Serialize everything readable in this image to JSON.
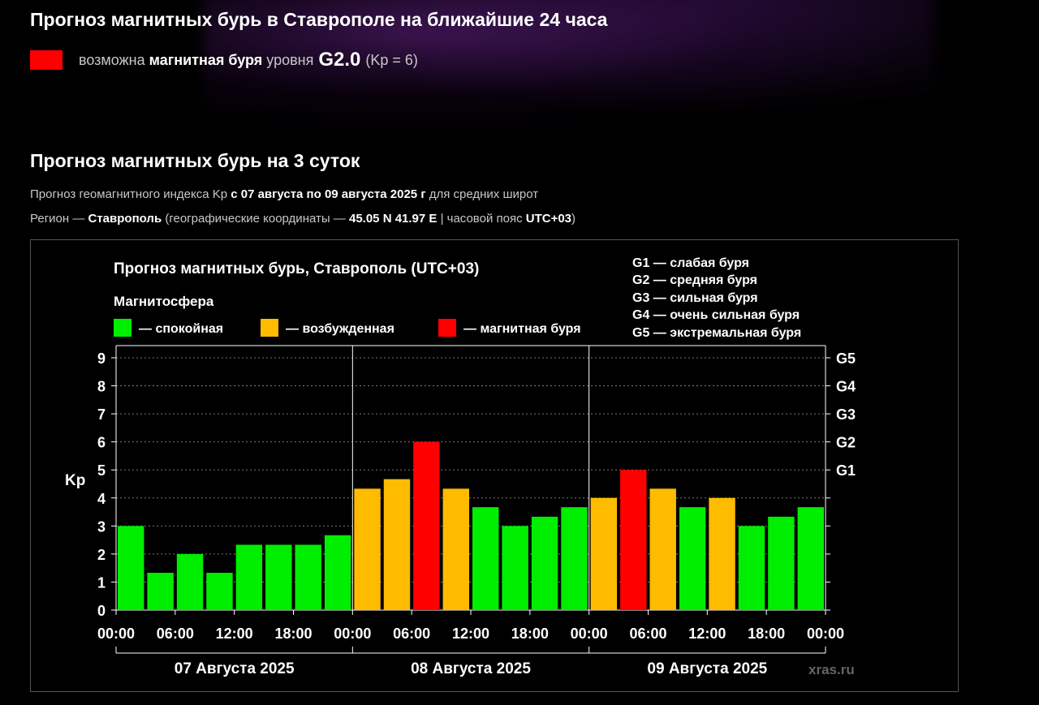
{
  "header": {
    "title": "Прогноз магнитных бурь в Ставрополе на ближайшие 24 часа",
    "status_color": "#ff0000",
    "status_prefix": "возможна",
    "status_bold": "магнитная буря",
    "status_mid": "уровня",
    "status_level": "G2.0",
    "status_kp": "(Kp = 6)"
  },
  "section": {
    "title": "Прогноз магнитных бурь на 3 суток",
    "line1_a": "Прогноз геомагнитного индекса Kp ",
    "line1_b": "с 07 августа по 09 августа 2025 г",
    "line1_c": " для средних широт",
    "line2_a": "Регион — ",
    "line2_b": "Ставрополь",
    "line2_c": " (географические координаты — ",
    "line2_d": "45.05 N 41.97 E",
    "line2_e": " | часовой пояс ",
    "line2_f": "UTC+03",
    "line2_g": ")"
  },
  "chart_data": {
    "type": "bar",
    "title": "Прогноз магнитных бурь, Ставрополь (UTC+03)",
    "legend_title": "Магнитосфера",
    "legend": [
      {
        "label": "— спокойная",
        "color": "#00ee00"
      },
      {
        "label": "— возбужденная",
        "color": "#ffbb00"
      },
      {
        "label": "— магнитная буря",
        "color": "#ff0000"
      }
    ],
    "g_legend": [
      "G1 — слабая буря",
      "G2 — средняя буря",
      "G3 — сильная буря",
      "G4 — очень сильная буря",
      "G5 — экстремальная буря"
    ],
    "ylabel": "Kp",
    "ylim": [
      0,
      9
    ],
    "yticks": [
      "0",
      "1",
      "2",
      "3",
      "4",
      "5",
      "6",
      "7",
      "8",
      "9"
    ],
    "right_ticks": [
      {
        "label": "G1",
        "kp": 5
      },
      {
        "label": "G2",
        "kp": 6
      },
      {
        "label": "G3",
        "kp": 7
      },
      {
        "label": "G4",
        "kp": 8
      },
      {
        "label": "G5",
        "kp": 9
      }
    ],
    "xtick_labels": [
      "00:00",
      "06:00",
      "12:00",
      "18:00",
      "00:00",
      "06:00",
      "12:00",
      "18:00",
      "00:00",
      "06:00",
      "12:00",
      "18:00",
      "00:00"
    ],
    "days": [
      "07 Августа 2025",
      "08 Августа 2025",
      "09 Августа 2025"
    ],
    "values": [
      3.0,
      1.33,
      2.0,
      1.33,
      2.33,
      2.33,
      2.33,
      2.67,
      4.33,
      4.67,
      6.0,
      4.33,
      3.67,
      3.0,
      3.33,
      3.67,
      4.0,
      5.0,
      4.33,
      3.67,
      4.0,
      3.0,
      3.33,
      3.67
    ],
    "colors": [
      "#00ee00",
      "#00ee00",
      "#00ee00",
      "#00ee00",
      "#00ee00",
      "#00ee00",
      "#00ee00",
      "#00ee00",
      "#ffbb00",
      "#ffbb00",
      "#ff0000",
      "#ffbb00",
      "#00ee00",
      "#00ee00",
      "#00ee00",
      "#00ee00",
      "#ffbb00",
      "#ff0000",
      "#ffbb00",
      "#00ee00",
      "#ffbb00",
      "#00ee00",
      "#00ee00",
      "#00ee00"
    ],
    "watermark": "xras.ru",
    "grid": true
  }
}
